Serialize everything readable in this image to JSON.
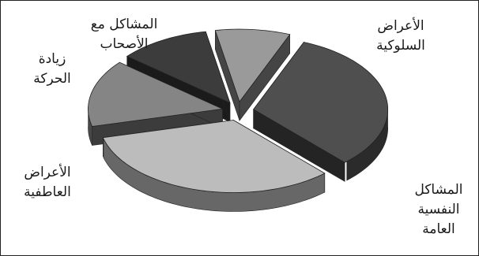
{
  "chart_data": {
    "type": "pie",
    "title": "",
    "style": "3d-exploded",
    "slices": [
      {
        "label": [
          "الأعراض",
          "السلوكية"
        ],
        "value": 32,
        "color": "#4f4f4f"
      },
      {
        "label": [
          "المشاكل",
          "النفسية",
          "العامة"
        ],
        "value": 33,
        "color": "#bcbcbc"
      },
      {
        "label": [
          "الأعراض",
          "العاطفية"
        ],
        "value": 15,
        "color": "#858585"
      },
      {
        "label": [
          "زيادة",
          "الحركة"
        ],
        "value": 11,
        "color": "#3c3c3c"
      },
      {
        "label": [
          "المشاكل مع",
          "الأصحاب"
        ],
        "value": 9,
        "color": "#9a9a9a"
      }
    ]
  }
}
